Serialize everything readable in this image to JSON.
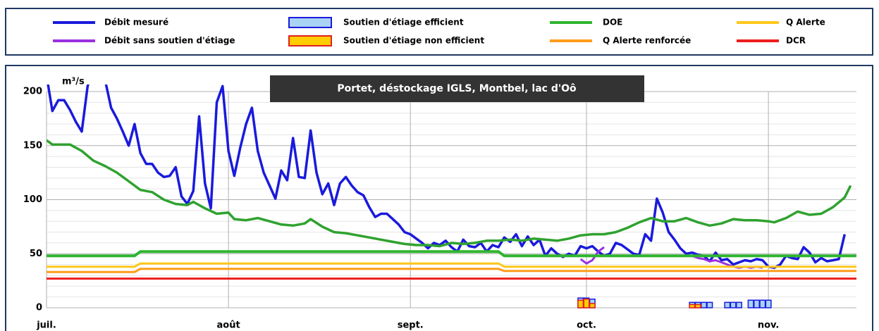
{
  "chart_data": {
    "type": "line",
    "title": "Portet, déstockage IGLS, Montbel, lac d'Oô",
    "y_label": "m³/s",
    "xlim": [
      0,
      138
    ],
    "xticks": [
      {
        "value": 0,
        "label": "juil."
      },
      {
        "value": 31,
        "label": "août"
      },
      {
        "value": 62,
        "label": "sept."
      },
      {
        "value": 92,
        "label": "oct."
      },
      {
        "value": 123,
        "label": "nov."
      }
    ],
    "ylim": [
      0,
      200
    ],
    "yticks": [
      0,
      50,
      100,
      150,
      200
    ],
    "minor_yticks": [
      10,
      20,
      30,
      40,
      60,
      70,
      80,
      90,
      110,
      120,
      130,
      140,
      160,
      170,
      180,
      190
    ],
    "grid": true,
    "series": [
      {
        "name": "Débit mesuré",
        "color": "#1a1adc",
        "mark": "line",
        "width": 3.5,
        "x": [
          0,
          1,
          2,
          3,
          4,
          5,
          6,
          7,
          8,
          9,
          10,
          11,
          12,
          13,
          14,
          15,
          16,
          17,
          18,
          19,
          20,
          21,
          22,
          23,
          24,
          25,
          26,
          27,
          28,
          29,
          30,
          31,
          32,
          33,
          34,
          35,
          36,
          37,
          38,
          39,
          40,
          41,
          42,
          43,
          44,
          45,
          46,
          47,
          48,
          49,
          50,
          51,
          52,
          53,
          54,
          55,
          56,
          57,
          58,
          59,
          60,
          61,
          62,
          63,
          64,
          65,
          66,
          67,
          68,
          69,
          70,
          71,
          72,
          73,
          74,
          75,
          76,
          77,
          78,
          79,
          80,
          81,
          82,
          83,
          84,
          85,
          86,
          87,
          88,
          89,
          90,
          91,
          92,
          93,
          94,
          95,
          96,
          97,
          98,
          99,
          100,
          101,
          102,
          103,
          104,
          105,
          106,
          107,
          108,
          109,
          110,
          111,
          112,
          113,
          114,
          115,
          116,
          117,
          118,
          119,
          120,
          121,
          122,
          123,
          124,
          125,
          126,
          127,
          128,
          129,
          130,
          131,
          132,
          133,
          134,
          135,
          136
        ],
        "values": [
          215,
          182,
          192,
          192,
          183,
          172,
          163,
          205,
          220,
          220,
          210,
          185,
          175,
          163,
          150,
          170,
          143,
          133,
          133,
          125,
          121,
          122,
          130,
          103,
          96,
          108,
          177,
          115,
          92,
          190,
          205,
          145,
          122,
          148,
          170,
          185,
          145,
          125,
          113,
          101,
          127,
          118,
          157,
          121,
          120,
          164,
          125,
          105,
          115,
          95,
          115,
          121,
          113,
          107,
          104,
          93,
          84,
          87,
          87,
          82,
          77,
          70,
          68,
          64,
          60,
          55,
          60,
          58,
          62,
          56,
          52,
          63,
          57,
          56,
          60,
          52,
          58,
          56,
          65,
          61,
          68,
          57,
          66,
          58,
          63,
          48,
          55,
          50,
          47,
          50,
          48,
          57,
          55,
          57,
          52,
          48,
          50,
          60,
          58,
          54,
          50,
          49,
          68,
          62,
          101,
          88,
          70,
          63,
          55,
          50,
          51,
          49,
          48,
          43,
          51,
          44,
          45,
          40,
          42,
          44,
          43,
          45,
          44,
          38,
          37,
          40,
          48,
          46,
          45,
          56,
          51,
          42,
          46,
          43,
          44,
          45,
          68
        ]
      },
      {
        "name": "Débit sans soutien d'étiage",
        "color": "#9b30e0",
        "mark": "line",
        "width": 3,
        "x": [
          91,
          92,
          93,
          94,
          95,
          96,
          110,
          111,
          112,
          113,
          114,
          115,
          116,
          117,
          118,
          119,
          120,
          121,
          122
        ],
        "values": [
          45,
          41,
          44,
          52,
          56,
          null,
          48,
          46,
          45,
          43,
          44,
          42,
          40,
          38,
          37,
          38,
          37,
          38,
          37
        ]
      },
      {
        "name": "Soutien d'étiage efficient",
        "color": "#a9d3f5",
        "stroke": "#1a1adc",
        "mark": "bar",
        "x": [
          91,
          92,
          93,
          110,
          111,
          112,
          113,
          116,
          117,
          118,
          120,
          121,
          122,
          123
        ],
        "values": [
          9,
          9,
          8,
          5,
          5,
          5,
          5,
          5,
          5,
          5,
          7,
          7,
          7,
          7
        ]
      },
      {
        "name": "Soutien d'étiage non efficient",
        "color": "#ffcc00",
        "stroke": "#e02020",
        "mark": "bar",
        "x": [
          91,
          92,
          93,
          110,
          111
        ],
        "values": [
          7,
          8,
          4,
          3,
          3
        ]
      },
      {
        "name": "DOE",
        "color": "#2fb52f",
        "mark": "line",
        "width": 4,
        "x": [
          0,
          15,
          16,
          77,
          78,
          138
        ],
        "values": [
          48,
          48,
          52,
          52,
          48,
          48
        ]
      },
      {
        "name": "Q Alerte renforcée",
        "color": "#ff9c1a",
        "mark": "line",
        "width": 3,
        "x": [
          0,
          15,
          16,
          77,
          78,
          138
        ],
        "values": [
          33,
          33,
          36,
          36,
          34,
          34
        ]
      },
      {
        "name": "Q Alerte",
        "color": "#ffc81a",
        "mark": "line",
        "width": 3,
        "x": [
          0,
          15,
          16,
          77,
          78,
          138
        ],
        "values": [
          38,
          38,
          41,
          41,
          38,
          38
        ]
      },
      {
        "name": "DCR",
        "color": "#ee1c1c",
        "mark": "line",
        "width": 3,
        "x": [
          0,
          138
        ],
        "values": [
          27,
          27
        ]
      },
      {
        "color": "#2fa22f",
        "mark": "line",
        "width": 3.5,
        "x": [
          0,
          1,
          2,
          4,
          6,
          8,
          10,
          12,
          14,
          16,
          18,
          20,
          22,
          24,
          25,
          27,
          29,
          31,
          32,
          34,
          36,
          38,
          40,
          42,
          44,
          45,
          47,
          49,
          51,
          53,
          55,
          57,
          59,
          61,
          63,
          65,
          67,
          69,
          71,
          73,
          75,
          77,
          79,
          81,
          83,
          85,
          87,
          89,
          91,
          93,
          95,
          97,
          99,
          101,
          103,
          105,
          107,
          109,
          111,
          113,
          115,
          117,
          119,
          121,
          123,
          124,
          126,
          128,
          130,
          132,
          134,
          136,
          137
        ],
        "values": [
          155,
          151,
          151,
          151,
          145,
          136,
          131,
          125,
          117,
          109,
          107,
          100,
          96,
          95,
          98,
          92,
          87,
          88,
          82,
          81,
          83,
          80,
          77,
          76,
          78,
          82,
          75,
          70,
          69,
          67,
          65,
          63,
          61,
          59,
          58,
          58,
          57,
          60,
          59,
          60,
          62,
          62,
          63,
          62,
          64,
          63,
          62,
          64,
          67,
          68,
          68,
          70,
          74,
          79,
          83,
          80,
          80,
          83,
          79,
          76,
          78,
          82,
          81,
          81,
          80,
          79,
          83,
          89,
          86,
          87,
          93,
          102,
          113
        ]
      }
    ]
  }
}
